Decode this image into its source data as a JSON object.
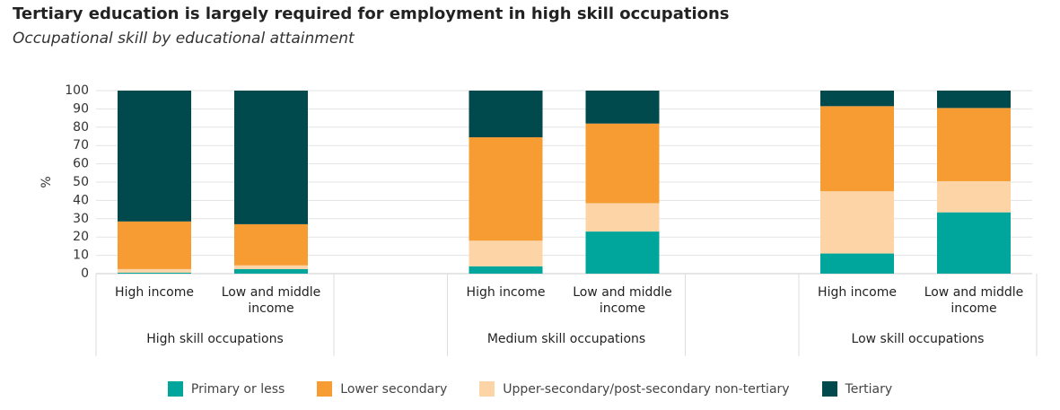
{
  "chart_data": {
    "type": "bar",
    "stacked": true,
    "title": "Tertiary education is largely required for employment in high skill occupations",
    "subtitle": "Occupational skill by educational attainment",
    "y_label": "%",
    "group_labels": [
      "High skill occupations",
      "Medium skill occupations",
      "Low skill occupations"
    ],
    "categories": [
      "High income",
      "Low and middle income",
      "High income",
      "Low and middle income",
      "High income",
      "Low and middle income"
    ],
    "series": [
      {
        "name": "Primary or less",
        "color": "#00a69c",
        "values": [
          0.5,
          2.5,
          4,
          23,
          11,
          33.5
        ]
      },
      {
        "name": "Upper-secondary/post-secondary non-tertiary",
        "color": "#fcd4a6",
        "values": [
          2,
          2,
          14,
          15.5,
          34,
          17
        ]
      },
      {
        "name": "Lower secondary",
        "color": "#f69c33",
        "values": [
          26,
          22.5,
          56.5,
          43.5,
          46.5,
          40
        ]
      },
      {
        "name": "Tertiary",
        "color": "#004a4e",
        "values": [
          71.5,
          73,
          25.5,
          18,
          8.5,
          9.5
        ]
      }
    ],
    "legend_order": [
      0,
      2,
      1,
      3
    ],
    "ylim": [
      0,
      100
    ],
    "yticks": [
      0,
      10,
      20,
      30,
      40,
      50,
      60,
      70,
      80,
      90,
      100
    ],
    "grid": true
  }
}
